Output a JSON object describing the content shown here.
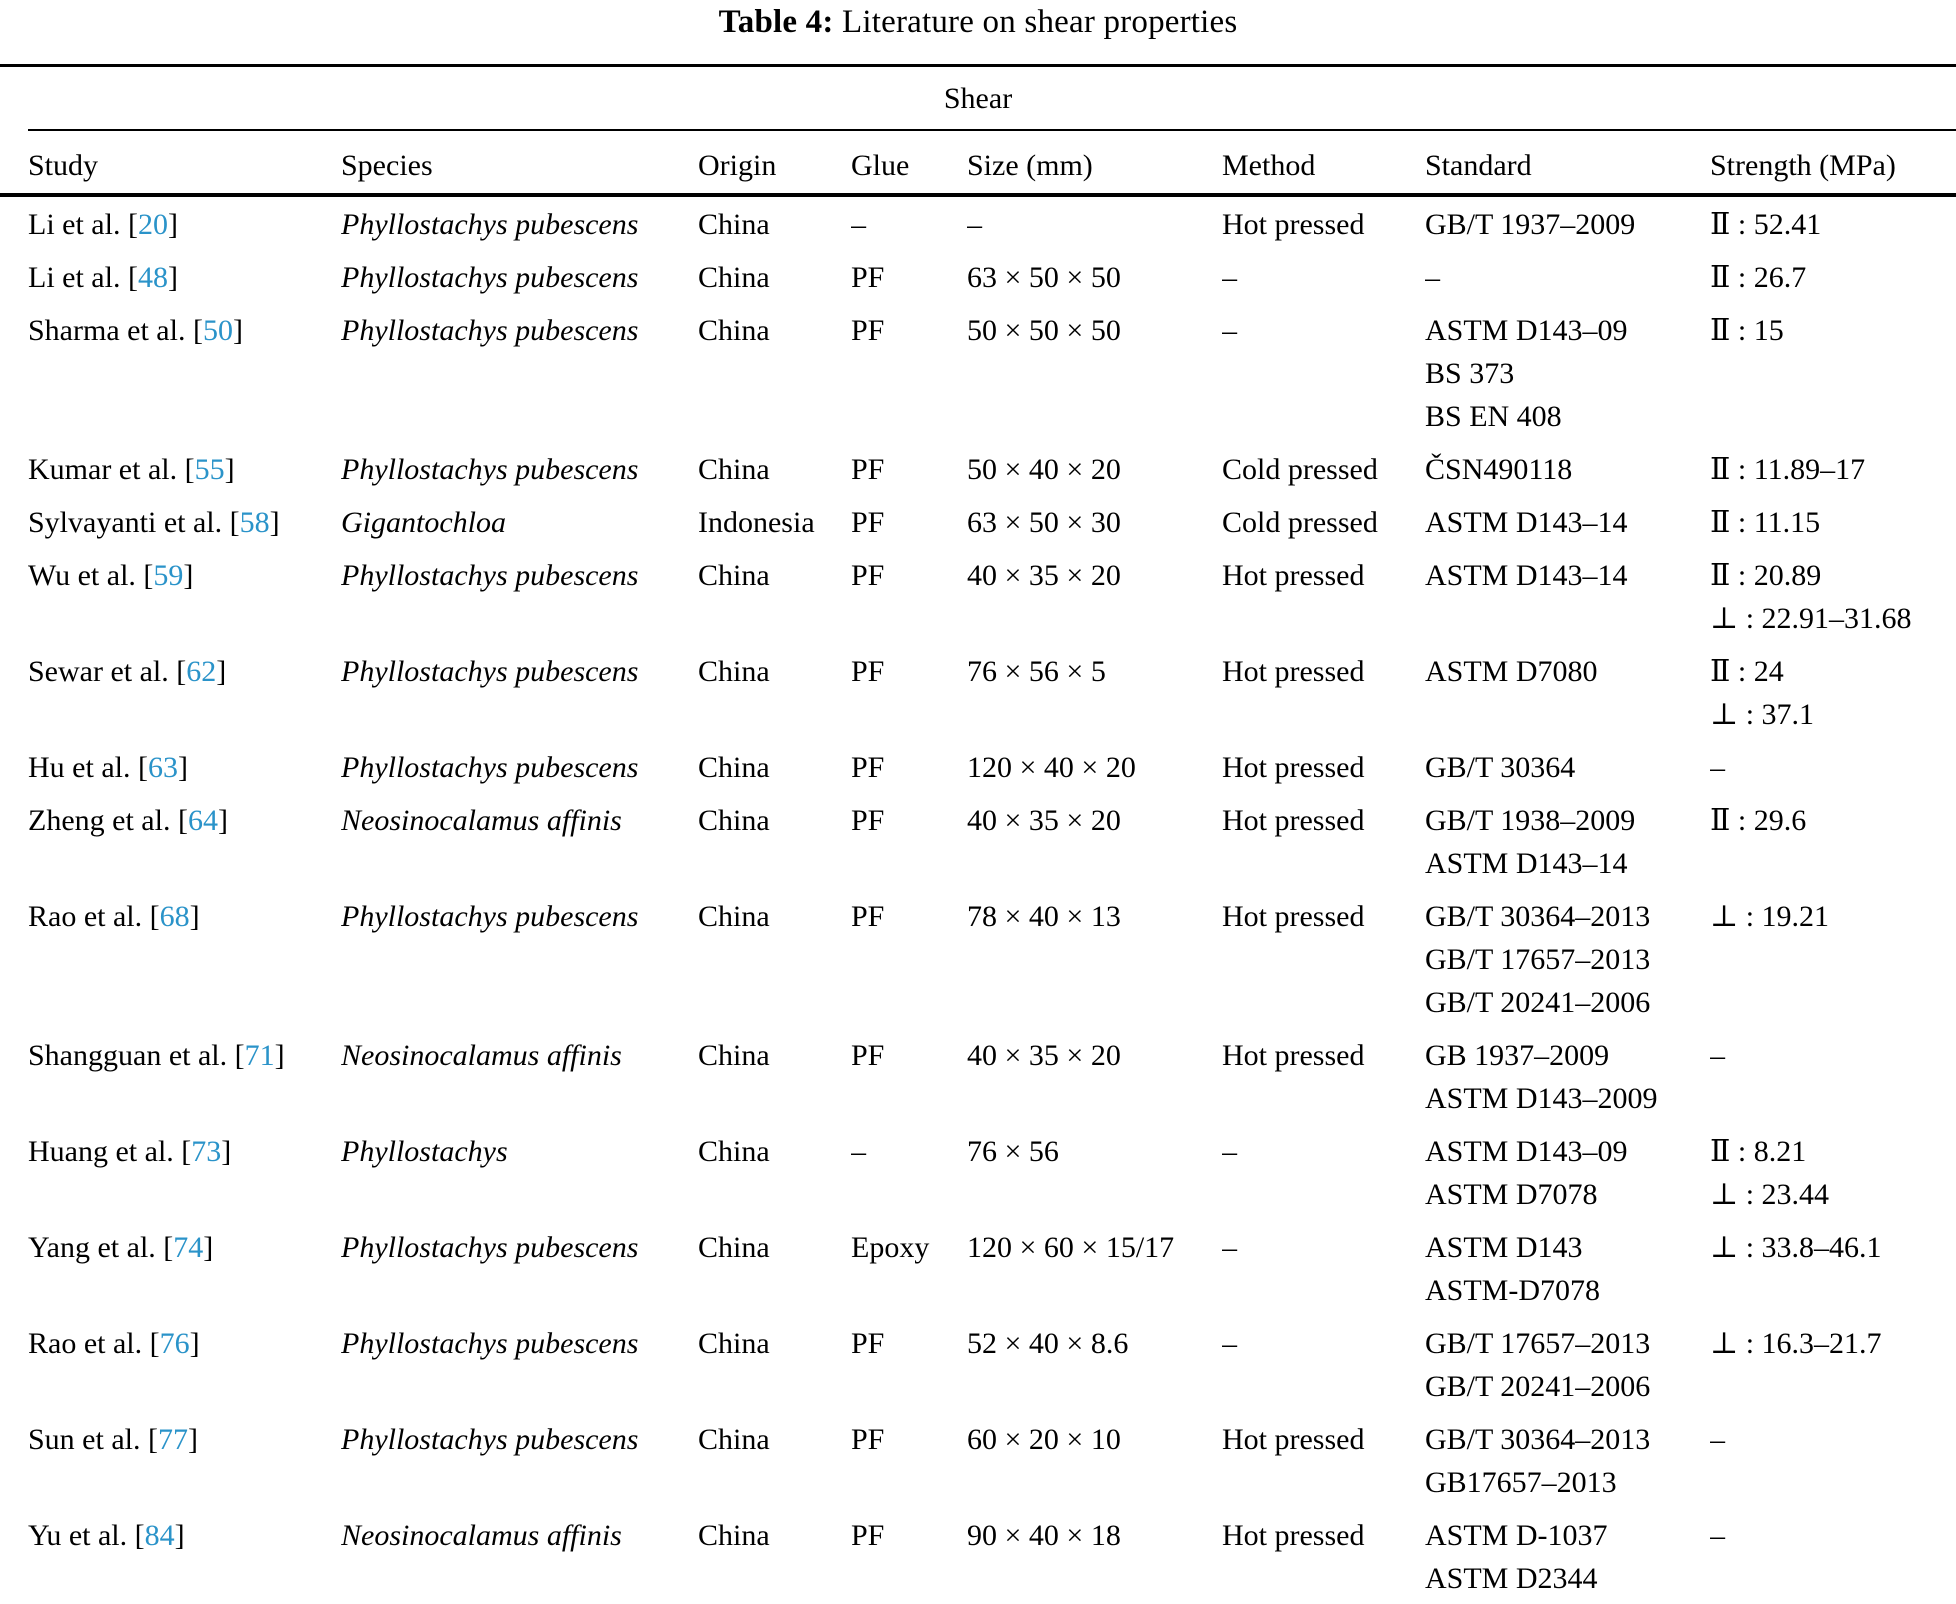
{
  "page_title": {
    "label": "Table 4:",
    "text": "Literature on shear properties"
  },
  "colors": {
    "citation": "#2a93c9"
  },
  "table": {
    "group_header": "Shear",
    "columns": [
      "Study",
      "Species",
      "Origin",
      "Glue",
      "Size (mm)",
      "Method",
      "Standard",
      "Strength (MPa)"
    ],
    "meta": {
      "bracket_open": "[",
      "bracket_close": "]"
    },
    "rows": [
      {
        "study": "Li et al.",
        "ref": "20",
        "species": "Phyllostachys pubescens",
        "origin": "China",
        "glue": "–",
        "size": "–",
        "method": "Hot pressed",
        "standard": [
          "GB/T 1937–2009"
        ],
        "strength": [
          "Ⅱ : 52.41"
        ]
      },
      {
        "study": "Li et al.",
        "ref": "48",
        "species": "Phyllostachys pubescens",
        "origin": "China",
        "glue": "PF",
        "size": "63 × 50 × 50",
        "method": "–",
        "standard": [
          "–"
        ],
        "strength": [
          "Ⅱ : 26.7"
        ]
      },
      {
        "study": "Sharma et al.",
        "ref": "50",
        "species": "Phyllostachys pubescens",
        "origin": "China",
        "glue": "PF",
        "size": "50 × 50 × 50",
        "method": "–",
        "standard": [
          "ASTM D143–09",
          "BS 373",
          "BS EN 408"
        ],
        "strength": [
          "Ⅱ : 15"
        ]
      },
      {
        "study": "Kumar et al.",
        "ref": "55",
        "species": "Phyllostachys pubescens",
        "origin": "China",
        "glue": "PF",
        "size": "50 × 40 × 20",
        "method": "Cold pressed",
        "standard": [
          "ČSN490118"
        ],
        "strength": [
          "Ⅱ : 11.89–17"
        ]
      },
      {
        "study": "Sylvayanti et al.",
        "ref": "58",
        "species": "Gigantochloa",
        "origin": "Indonesia",
        "glue": "PF",
        "size": "63 × 50 × 30",
        "method": "Cold pressed",
        "standard": [
          "ASTM D143–14"
        ],
        "strength": [
          "Ⅱ : 11.15"
        ]
      },
      {
        "study": "Wu et al.",
        "ref": "59",
        "species": "Phyllostachys pubescens",
        "origin": "China",
        "glue": "PF",
        "size": "40 × 35 × 20",
        "method": "Hot pressed",
        "standard": [
          "ASTM D143–14"
        ],
        "strength": [
          "Ⅱ : 20.89",
          "⊥ : 22.91–31.68"
        ]
      },
      {
        "study": "Sewar et al.",
        "ref": "62",
        "species": "Phyllostachys pubescens",
        "origin": "China",
        "glue": "PF",
        "size": "76 × 56 × 5",
        "method": "Hot pressed",
        "standard": [
          "ASTM D7080"
        ],
        "strength": [
          "Ⅱ : 24",
          "⊥ : 37.1"
        ]
      },
      {
        "study": "Hu et al.",
        "ref": "63",
        "species": "Phyllostachys pubescens",
        "origin": "China",
        "glue": "PF",
        "size": "120 × 40 × 20",
        "method": "Hot pressed",
        "standard": [
          "GB/T 30364"
        ],
        "strength": [
          "–"
        ]
      },
      {
        "study": "Zheng et al.",
        "ref": "64",
        "species": "Neosinocalamus affinis",
        "origin": "China",
        "glue": "PF",
        "size": "40 × 35 × 20",
        "method": "Hot pressed",
        "standard": [
          "GB/T 1938–2009",
          "ASTM D143–14"
        ],
        "strength": [
          "Ⅱ : 29.6"
        ]
      },
      {
        "study": "Rao et al.",
        "ref": "68",
        "species": "Phyllostachys pubescens",
        "origin": "China",
        "glue": "PF",
        "size": "78 × 40 × 13",
        "method": "Hot pressed",
        "standard": [
          "GB/T 30364–2013",
          "GB/T 17657–2013",
          "GB/T 20241–2006"
        ],
        "strength": [
          "⊥ : 19.21"
        ]
      },
      {
        "study": "Shangguan et al.",
        "ref": "71",
        "species": "Neosinocalamus affinis",
        "origin": "China",
        "glue": "PF",
        "size": "40 × 35 × 20",
        "method": "Hot pressed",
        "standard": [
          "GB 1937–2009",
          "ASTM D143–2009"
        ],
        "strength": [
          "–"
        ]
      },
      {
        "study": "Huang et al.",
        "ref": "73",
        "species": "Phyllostachys",
        "origin": "China",
        "glue": "–",
        "size": "76 × 56",
        "method": "–",
        "standard": [
          "ASTM D143–09",
          "ASTM D7078"
        ],
        "strength": [
          "Ⅱ : 8.21",
          "⊥ : 23.44"
        ]
      },
      {
        "study": "Yang et al.",
        "ref": "74",
        "species": "Phyllostachys pubescens",
        "origin": "China",
        "glue": "Epoxy",
        "size": "120 × 60 × 15/17",
        "method": "–",
        "standard": [
          "ASTM D143",
          "ASTM-D7078"
        ],
        "strength": [
          "⊥ : 33.8–46.1"
        ]
      },
      {
        "study": "Rao et al.",
        "ref": "76",
        "species": "Phyllostachys pubescens",
        "origin": "China",
        "glue": "PF",
        "size": "52 × 40 × 8.6",
        "method": "–",
        "standard": [
          "GB/T 17657–2013",
          "GB/T 20241–2006"
        ],
        "strength": [
          "⊥ : 16.3–21.7"
        ]
      },
      {
        "study": "Sun et al.",
        "ref": "77",
        "species": "Phyllostachys pubescens",
        "origin": "China",
        "glue": "PF",
        "size": "60 × 20 × 10",
        "method": "Hot pressed",
        "standard": [
          "GB/T 30364–2013",
          "GB17657–2013"
        ],
        "strength": [
          "–"
        ]
      },
      {
        "study": "Yu et al.",
        "ref": "84",
        "species": "Neosinocalamus affinis",
        "origin": "China",
        "glue": "PF",
        "size": "90 × 40 × 18",
        "method": "Hot pressed",
        "standard": [
          "ASTM D-1037",
          "ASTM D2344"
        ],
        "strength": [
          "–"
        ]
      }
    ]
  }
}
